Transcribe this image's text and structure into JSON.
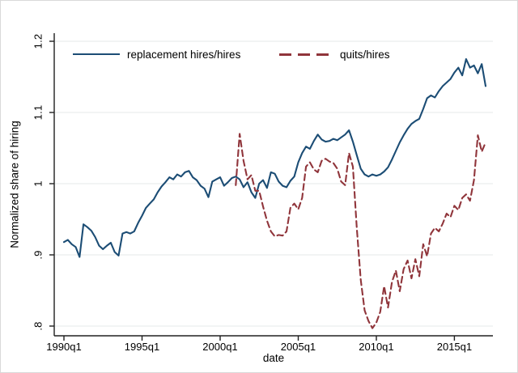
{
  "chart_data": {
    "type": "line",
    "title": "",
    "xlabel": "date",
    "ylabel": "Normalized share of hiring",
    "x_unit": "quarterly",
    "x_start": "1990q1",
    "x_end": "2017q1",
    "ylim": [
      0.8,
      1.2
    ],
    "grid": "horizontal",
    "legend_position": "top-inside",
    "axis_color": "#202020",
    "grid_color": "#e5e8ea",
    "y_ticks": [
      {
        "label": ".8",
        "value": 0.8
      },
      {
        "label": ".9",
        "value": 0.9
      },
      {
        "label": "1",
        "value": 1.0
      },
      {
        "label": "1.1",
        "value": 1.1
      },
      {
        "label": "1.2",
        "value": 1.2
      }
    ],
    "x_ticks": [
      {
        "label": "1990q1",
        "q": 0
      },
      {
        "label": "1995q1",
        "q": 20
      },
      {
        "label": "2000q1",
        "q": 40
      },
      {
        "label": "2005q1",
        "q": 60
      },
      {
        "label": "2010q1",
        "q": 80
      },
      {
        "label": "2015q1",
        "q": 100
      }
    ],
    "series": [
      {
        "name": "replacement hires/hires",
        "color": "#1c4d75",
        "style": "solid",
        "start_q": 0,
        "start_date": "1990q1",
        "values": [
          0.918,
          0.921,
          0.915,
          0.911,
          0.897,
          0.943,
          0.939,
          0.934,
          0.925,
          0.913,
          0.908,
          0.913,
          0.917,
          0.904,
          0.899,
          0.93,
          0.932,
          0.93,
          0.933,
          0.945,
          0.955,
          0.966,
          0.972,
          0.978,
          0.988,
          0.996,
          1.002,
          1.009,
          1.006,
          1.013,
          1.01,
          1.016,
          1.018,
          1.009,
          1.005,
          0.997,
          0.993,
          0.981,
          1.003,
          1.006,
          1.009,
          0.997,
          1.002,
          1.008,
          1.01,
          1.006,
          0.995,
          1.002,
          0.988,
          0.98,
          1.0,
          1.005,
          0.994,
          1.016,
          1.014,
          1.003,
          0.997,
          0.995,
          1.004,
          1.01,
          1.03,
          1.043,
          1.052,
          1.049,
          1.06,
          1.069,
          1.062,
          1.059,
          1.06,
          1.063,
          1.061,
          1.065,
          1.069,
          1.075,
          1.059,
          1.04,
          1.021,
          1.013,
          1.01,
          1.013,
          1.011,
          1.013,
          1.017,
          1.023,
          1.034,
          1.046,
          1.058,
          1.068,
          1.077,
          1.084,
          1.088,
          1.091,
          1.105,
          1.12,
          1.124,
          1.121,
          1.13,
          1.137,
          1.142,
          1.147,
          1.156,
          1.163,
          1.152,
          1.175,
          1.163,
          1.166,
          1.155,
          1.168,
          1.137
        ]
      },
      {
        "name": "quits/hires",
        "color": "#90353b",
        "style": "dashed",
        "start_q": 44,
        "start_date": "2001q1",
        "values": [
          0.998,
          1.07,
          1.032,
          1.006,
          1.012,
          0.99,
          0.99,
          0.968,
          0.948,
          0.933,
          0.926,
          0.928,
          0.927,
          0.933,
          0.966,
          0.972,
          0.964,
          0.98,
          1.024,
          1.03,
          1.02,
          1.016,
          1.032,
          1.035,
          1.031,
          1.029,
          1.021,
          1.003,
          0.998,
          1.043,
          1.024,
          0.938,
          0.865,
          0.822,
          0.807,
          0.797,
          0.805,
          0.82,
          0.856,
          0.826,
          0.862,
          0.878,
          0.849,
          0.88,
          0.892,
          0.867,
          0.894,
          0.87,
          0.915,
          0.898,
          0.93,
          0.938,
          0.933,
          0.944,
          0.958,
          0.953,
          0.969,
          0.963,
          0.98,
          0.985,
          0.976,
          1.005,
          1.068,
          1.045,
          1.058
        ]
      }
    ]
  }
}
